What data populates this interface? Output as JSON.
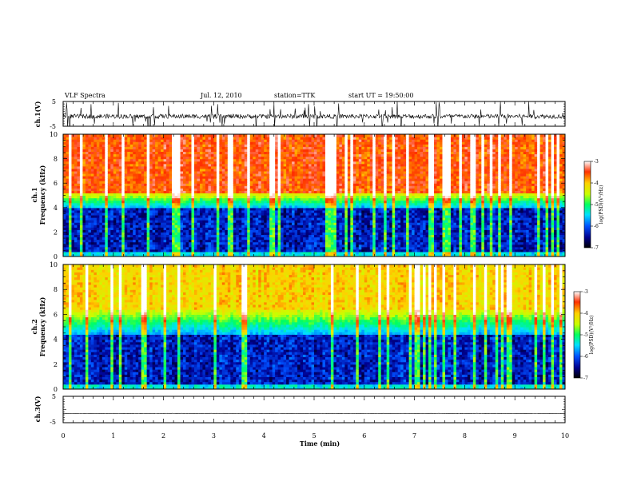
{
  "header": {
    "title": "VLF Spectra",
    "date": "Jul. 12, 2010",
    "station": "station=TTK",
    "start": "start UT = 19:50:00"
  },
  "chart_data": [
    {
      "type": "line",
      "name": "ch1-waveform",
      "ylabel": "ch.1(V)",
      "ylim": [
        -5,
        5
      ],
      "yticks": [
        "5",
        "-5"
      ],
      "xlim": [
        0,
        9.85
      ],
      "trace": "noisy waveform centered near -1 V with frequent spikes to about +5 and -5 V"
    },
    {
      "type": "heatmap",
      "name": "ch1-spectrogram",
      "ylabel": "ch.1 Frequency (kHz)",
      "ylim": [
        0,
        10
      ],
      "yticks": [
        "0",
        "2",
        "4",
        "6",
        "8",
        "10"
      ],
      "xlim": [
        0,
        9.85
      ],
      "colorbar": {
        "label": "log(PSD)(V²/Hz)",
        "ticks": [
          "-3",
          "-4",
          "-5",
          "-6",
          "-7"
        ],
        "range": [
          -7,
          -3
        ]
      },
      "bands": {
        "low_khz": [
          0.5,
          4
        ],
        "transition_khz": [
          4,
          5.2
        ],
        "high_khz": [
          5.2,
          10
        ]
      }
    },
    {
      "type": "heatmap",
      "name": "ch2-spectrogram",
      "ylabel": "ch.2 Frequency (kHz)",
      "ylim": [
        0,
        10
      ],
      "yticks": [
        "0",
        "2",
        "4",
        "6",
        "8",
        "10"
      ],
      "xlim": [
        0,
        9.85
      ],
      "colorbar": {
        "label": "log(PSD)(V²/Hz)",
        "ticks": [
          "-3",
          "-4",
          "-5",
          "-6",
          "-7"
        ],
        "range": [
          -7,
          -3
        ]
      },
      "bands": {
        "low_khz": [
          0.5,
          4.5
        ],
        "transition_khz": [
          4.5,
          6.5
        ],
        "high_khz": [
          6.5,
          10
        ]
      }
    },
    {
      "type": "line",
      "name": "ch3-waveform",
      "ylabel": "ch.3(V)",
      "ylim": [
        -5,
        5
      ],
      "yticks": [
        "5",
        "-5"
      ],
      "xlim": [
        0,
        9.85
      ],
      "trace": "flat line near -1.5 V"
    }
  ],
  "xaxis": {
    "label": "Time (min)",
    "ticks": [
      "0",
      "1",
      "2",
      "3",
      "4",
      "5",
      "6",
      "7",
      "8",
      "9",
      "10"
    ],
    "range": [
      0,
      10
    ]
  }
}
